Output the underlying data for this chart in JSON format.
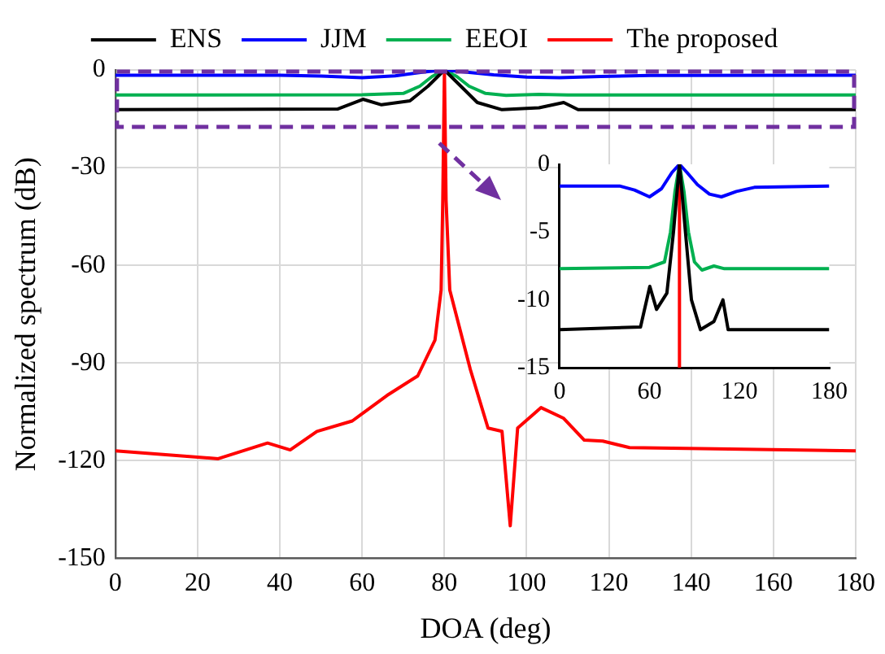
{
  "chart_data": [
    {
      "type": "line",
      "xlabel": "DOA (deg)",
      "ylabel": "Normalized spectrum (dB)",
      "xlim": [
        0,
        180
      ],
      "ylim": [
        -150,
        0
      ],
      "xticks": [
        0,
        20,
        40,
        60,
        80,
        100,
        120,
        140,
        160,
        180
      ],
      "yticks": [
        0,
        -30,
        -60,
        -90,
        -120,
        -150
      ],
      "grid": true,
      "legend": "top",
      "marker": "none",
      "line_style": "solid",
      "series": [
        {
          "name": "ENS",
          "color": "#000000",
          "x": [
            0,
            54,
            60.2,
            64.7,
            71.6,
            76,
            80,
            84,
            88,
            94,
            103,
            109,
            112.5,
            180
          ],
          "values": [
            -12.2,
            -12,
            -9,
            -10.7,
            -9.5,
            -5,
            0,
            -5,
            -10,
            -12.2,
            -11.6,
            -10,
            -12.2,
            -12.2
          ]
        },
        {
          "name": "JJM",
          "color": "#0000ff",
          "x": [
            0,
            40,
            50,
            60,
            68,
            75,
            80,
            85,
            92,
            100,
            108,
            118,
            130,
            180
          ],
          "values": [
            -1.6,
            -1.6,
            -1.9,
            -2.4,
            -1.8,
            -0.6,
            0,
            -0.6,
            -1.5,
            -2.2,
            -2.4,
            -2,
            -1.7,
            -1.6
          ]
        },
        {
          "name": "EEOI",
          "color": "#00b050",
          "x": [
            0,
            60,
            70,
            74,
            77,
            80,
            83,
            86,
            90,
            95,
            103,
            110,
            180
          ],
          "values": [
            -7.7,
            -7.6,
            -7.2,
            -5,
            -2,
            0,
            -2,
            -5,
            -7.2,
            -7.8,
            -7.5,
            -7.7,
            -7.7
          ]
        },
        {
          "name": "The proposed",
          "color": "#ff0000",
          "x": [
            0,
            25,
            37,
            42.5,
            49,
            57.6,
            66,
            73.5,
            77.7,
            79.2,
            79.6,
            80,
            80.4,
            81.3,
            86.3,
            90.6,
            94,
            96,
            97.8,
            103.5,
            109,
            114,
            118.5,
            125,
            180
          ],
          "values": [
            -117,
            -119.4,
            -114.6,
            -116.7,
            -111,
            -107.8,
            -100,
            -94,
            -83,
            -67.6,
            -40,
            0,
            -40,
            -67.6,
            -92,
            -110,
            -111,
            -140,
            -110,
            -103.7,
            -107,
            -113.7,
            -114,
            -116,
            -117
          ]
        }
      ]
    },
    {
      "type": "line",
      "xlim": [
        0,
        180
      ],
      "ylim": [
        -15,
        0
      ],
      "xticks": [
        0,
        60,
        120,
        180
      ],
      "yticks": [
        0,
        -5,
        -10,
        -15
      ],
      "marker": "none",
      "line_style": "solid",
      "series": [
        {
          "color": "#000000",
          "x": [
            0,
            54,
            60.2,
            64.7,
            71.6,
            76,
            80,
            84,
            88,
            94,
            103,
            109,
            112.5,
            180
          ],
          "values": [
            -12.2,
            -12,
            -9,
            -10.7,
            -9.5,
            -5,
            0,
            -5,
            -10,
            -12.2,
            -11.6,
            -10,
            -12.2,
            -12.2
          ]
        },
        {
          "color": "#0000ff",
          "x": [
            0,
            40,
            50,
            60,
            68,
            75,
            80,
            85,
            92,
            100,
            108,
            118,
            130,
            180
          ],
          "values": [
            -1.6,
            -1.6,
            -1.9,
            -2.4,
            -1.8,
            -0.6,
            0,
            -0.6,
            -1.5,
            -2.2,
            -2.4,
            -2,
            -1.7,
            -1.6
          ]
        },
        {
          "color": "#00b050",
          "x": [
            0,
            60,
            70,
            74,
            77,
            80,
            83,
            86,
            90,
            95,
            103,
            110,
            180
          ],
          "values": [
            -7.7,
            -7.6,
            -7.2,
            -5,
            -2,
            0,
            -2,
            -5,
            -7.2,
            -7.8,
            -7.5,
            -7.7,
            -7.7
          ]
        },
        {
          "color": "#ff0000",
          "x": [
            80,
            80
          ],
          "values": [
            0,
            -15
          ]
        }
      ]
    }
  ]
}
